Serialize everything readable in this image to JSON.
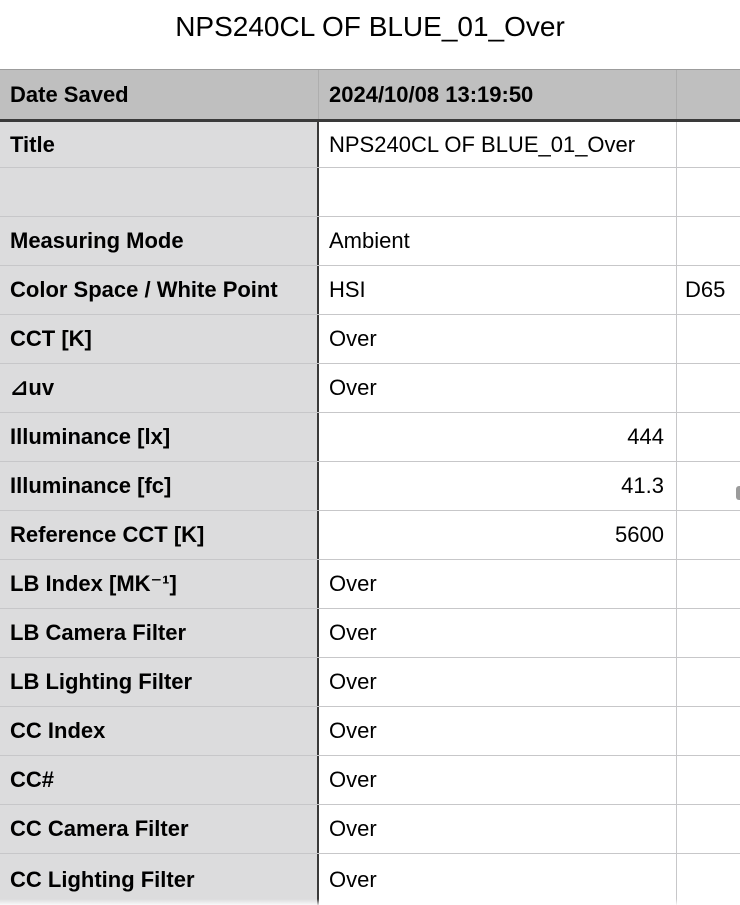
{
  "page": {
    "title": "NPS240CL OF BLUE_01_Over"
  },
  "colors": {
    "header_bg": "#bfbfbf",
    "label_bg": "#dcdcdd",
    "grid_line": "#c7c7c9",
    "dark_line": "#3a3a3a",
    "header_separator": "#aeaeae",
    "scrollbar": "#9b9b9b"
  },
  "table": {
    "rows": [
      {
        "label": "Date Saved",
        "value": "2024/10/08 13:19:50",
        "extra": "",
        "header": true
      },
      {
        "label": "Title",
        "value": "NPS240CL OF BLUE_01_Over",
        "extra": ""
      },
      {
        "label": "",
        "value": "",
        "extra": ""
      },
      {
        "label": "Measuring Mode",
        "value": "Ambient",
        "extra": ""
      },
      {
        "label": "Color Space / White Point",
        "value": "HSI",
        "extra": "D65"
      },
      {
        "label": "CCT [K]",
        "value": "Over",
        "extra": ""
      },
      {
        "label": "⊿uv",
        "value": "Over",
        "extra": ""
      },
      {
        "label": "Illuminance [lx]",
        "value": "444",
        "extra": "",
        "align": "right"
      },
      {
        "label": "Illuminance [fc]",
        "value": "41.3",
        "extra": "",
        "align": "right"
      },
      {
        "label": "Reference CCT [K]",
        "value": "5600",
        "extra": "",
        "align": "right"
      },
      {
        "label": "LB Index [MK⁻¹]",
        "value": "Over",
        "extra": ""
      },
      {
        "label": "LB Camera Filter",
        "value": "Over",
        "extra": ""
      },
      {
        "label": "LB Lighting Filter",
        "value": "Over",
        "extra": ""
      },
      {
        "label": "CC Index",
        "value": "Over",
        "extra": ""
      },
      {
        "label": "CC#",
        "value": "Over",
        "extra": ""
      },
      {
        "label": "CC Camera Filter",
        "value": "Over",
        "extra": ""
      },
      {
        "label": "CC Lighting Filter",
        "value": "Over",
        "extra": ""
      }
    ]
  }
}
